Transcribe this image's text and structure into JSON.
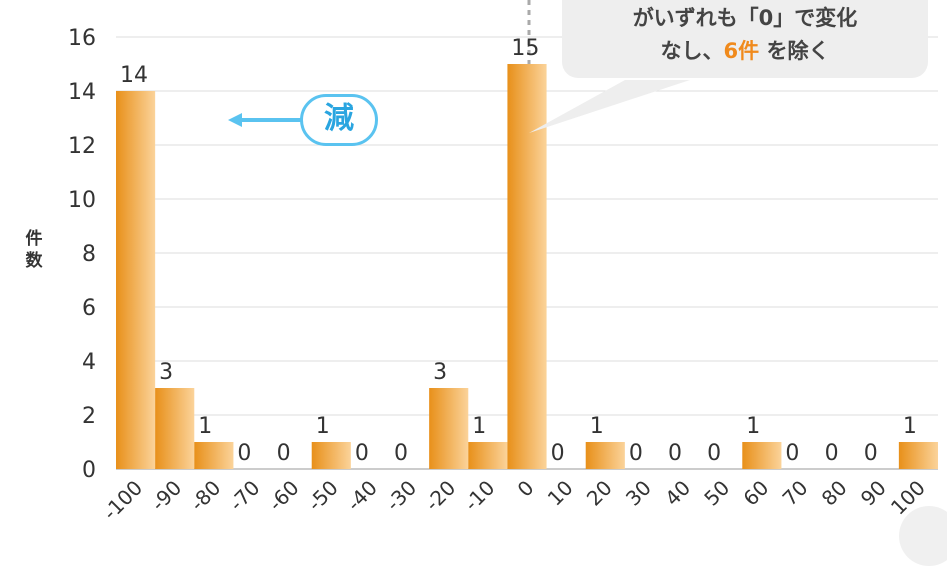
{
  "chart_data": {
    "type": "bar",
    "categories": [
      "-100",
      "-90",
      "-80",
      "-70",
      "-60",
      "-50",
      "-40",
      "-30",
      "-20",
      "-10",
      "0",
      "10",
      "20",
      "30",
      "40",
      "50",
      "60",
      "70",
      "80",
      "90",
      "100"
    ],
    "values": [
      14,
      3,
      1,
      0,
      0,
      1,
      0,
      0,
      3,
      1,
      15,
      0,
      1,
      0,
      0,
      0,
      1,
      0,
      0,
      0,
      1
    ],
    "ylabel": "件数",
    "ylim": [
      0,
      16
    ],
    "yticks": [
      0,
      2,
      4,
      6,
      8,
      10,
      12,
      14,
      16
    ],
    "grid": true,
    "bar_color": "#f0a040",
    "annotations": {
      "decrease_label": "減",
      "callout": {
        "line1": "がいずれも「0」で変化",
        "line2_pre": "なし、",
        "line2_hl": "6件",
        "line2_post": " を除く"
      }
    }
  }
}
